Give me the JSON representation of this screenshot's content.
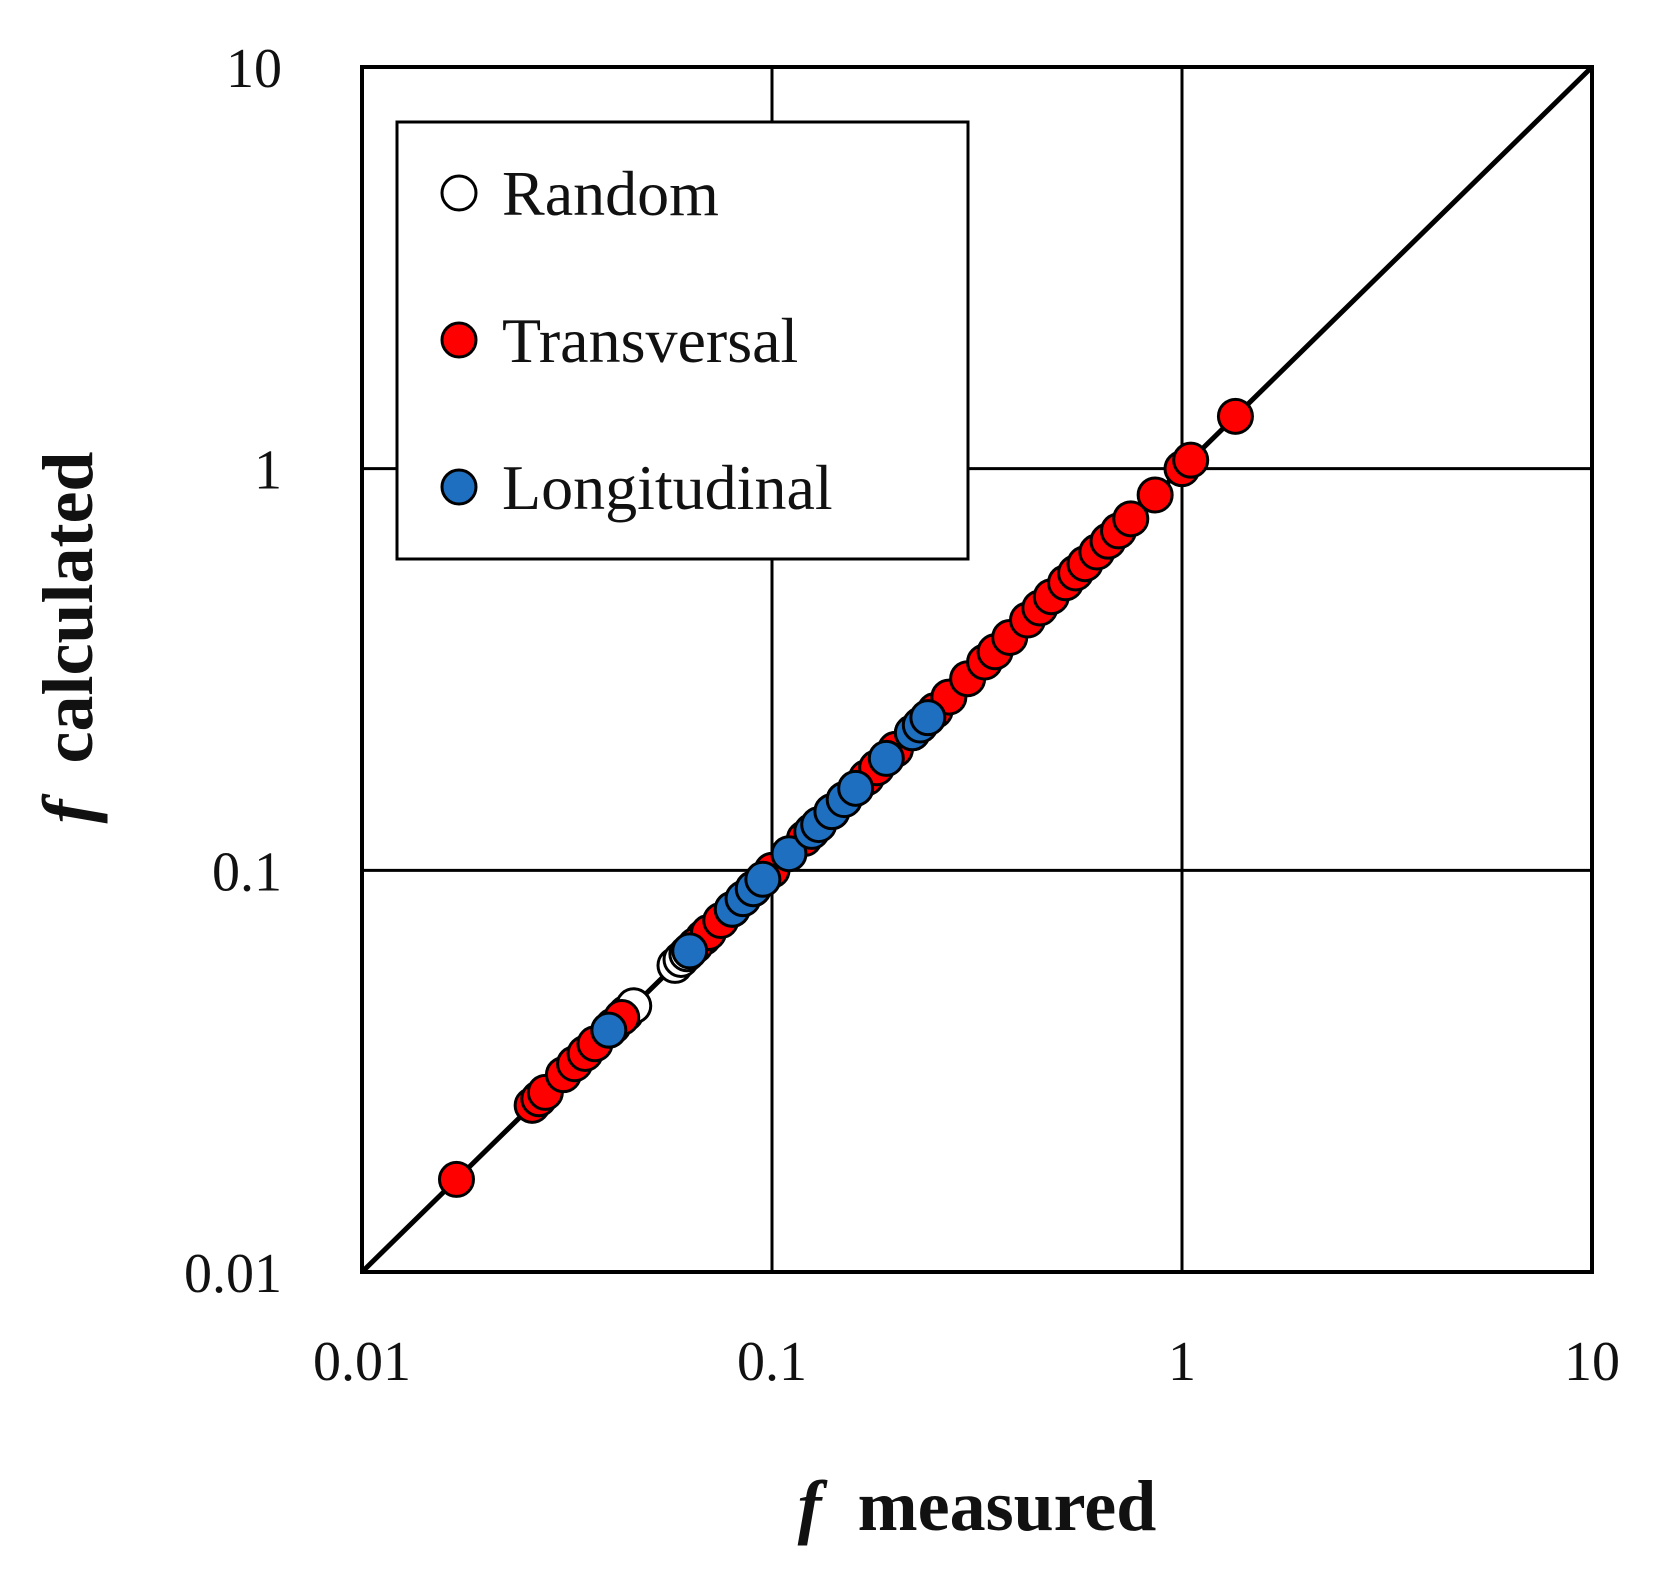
{
  "chart_data": {
    "type": "scatter",
    "title": "",
    "xlabel": {
      "symbol": "f",
      "text": "measured"
    },
    "ylabel": {
      "symbol": "f",
      "text": "calculated"
    },
    "xscale": "log",
    "yscale": "log",
    "xlim": [
      0.01,
      10
    ],
    "ylim": [
      0.01,
      10
    ],
    "x_ticks": [
      "0.01",
      "0.1",
      "1",
      "10"
    ],
    "y_ticks": [
      "0.01",
      "0.1",
      "1",
      "10"
    ],
    "tick_values": [
      0.01,
      0.1,
      1,
      10
    ],
    "grid": true,
    "reference_line": "y = x",
    "legend_position": "top-left",
    "series": [
      {
        "name": "Random",
        "color": "#ffffff",
        "points": [
          [
            0.058,
            0.058
          ],
          [
            0.06,
            0.06
          ],
          [
            0.044,
            0.044
          ],
          [
            0.046,
            0.046
          ],
          [
            0.041,
            0.041
          ],
          [
            0.062,
            0.062
          ],
          [
            0.068,
            0.068
          ],
          [
            0.09,
            0.09
          ]
        ]
      },
      {
        "name": "Transversal",
        "color": "#ff0000",
        "points": [
          [
            0.017,
            0.017
          ],
          [
            0.026,
            0.026
          ],
          [
            0.027,
            0.027
          ],
          [
            0.028,
            0.028
          ],
          [
            0.031,
            0.031
          ],
          [
            0.033,
            0.033
          ],
          [
            0.035,
            0.035
          ],
          [
            0.037,
            0.037
          ],
          [
            0.04,
            0.04
          ],
          [
            0.043,
            0.043
          ],
          [
            0.065,
            0.065
          ],
          [
            0.07,
            0.07
          ],
          [
            0.075,
            0.075
          ],
          [
            0.08,
            0.08
          ],
          [
            0.09,
            0.09
          ],
          [
            0.1,
            0.1
          ],
          [
            0.12,
            0.12
          ],
          [
            0.14,
            0.14
          ],
          [
            0.15,
            0.15
          ],
          [
            0.16,
            0.16
          ],
          [
            0.17,
            0.17
          ],
          [
            0.18,
            0.18
          ],
          [
            0.2,
            0.2
          ],
          [
            0.22,
            0.22
          ],
          [
            0.25,
            0.25
          ],
          [
            0.27,
            0.27
          ],
          [
            0.3,
            0.3
          ],
          [
            0.33,
            0.33
          ],
          [
            0.35,
            0.35
          ],
          [
            0.38,
            0.38
          ],
          [
            0.42,
            0.42
          ],
          [
            0.45,
            0.45
          ],
          [
            0.48,
            0.48
          ],
          [
            0.52,
            0.52
          ],
          [
            0.55,
            0.55
          ],
          [
            0.58,
            0.58
          ],
          [
            0.62,
            0.62
          ],
          [
            0.66,
            0.66
          ],
          [
            0.7,
            0.7
          ],
          [
            0.75,
            0.75
          ],
          [
            0.86,
            0.86
          ],
          [
            1.0,
            1.0
          ],
          [
            1.05,
            1.05
          ],
          [
            1.35,
            1.35
          ]
        ]
      },
      {
        "name": "Longitudinal",
        "color": "#1f6fc0",
        "points": [
          [
            0.04,
            0.04
          ],
          [
            0.063,
            0.063
          ],
          [
            0.08,
            0.08
          ],
          [
            0.085,
            0.085
          ],
          [
            0.09,
            0.09
          ],
          [
            0.095,
            0.095
          ],
          [
            0.11,
            0.11
          ],
          [
            0.125,
            0.125
          ],
          [
            0.13,
            0.13
          ],
          [
            0.14,
            0.14
          ],
          [
            0.15,
            0.15
          ],
          [
            0.16,
            0.16
          ],
          [
            0.19,
            0.19
          ],
          [
            0.22,
            0.22
          ],
          [
            0.23,
            0.23
          ],
          [
            0.24,
            0.24
          ]
        ]
      }
    ]
  }
}
